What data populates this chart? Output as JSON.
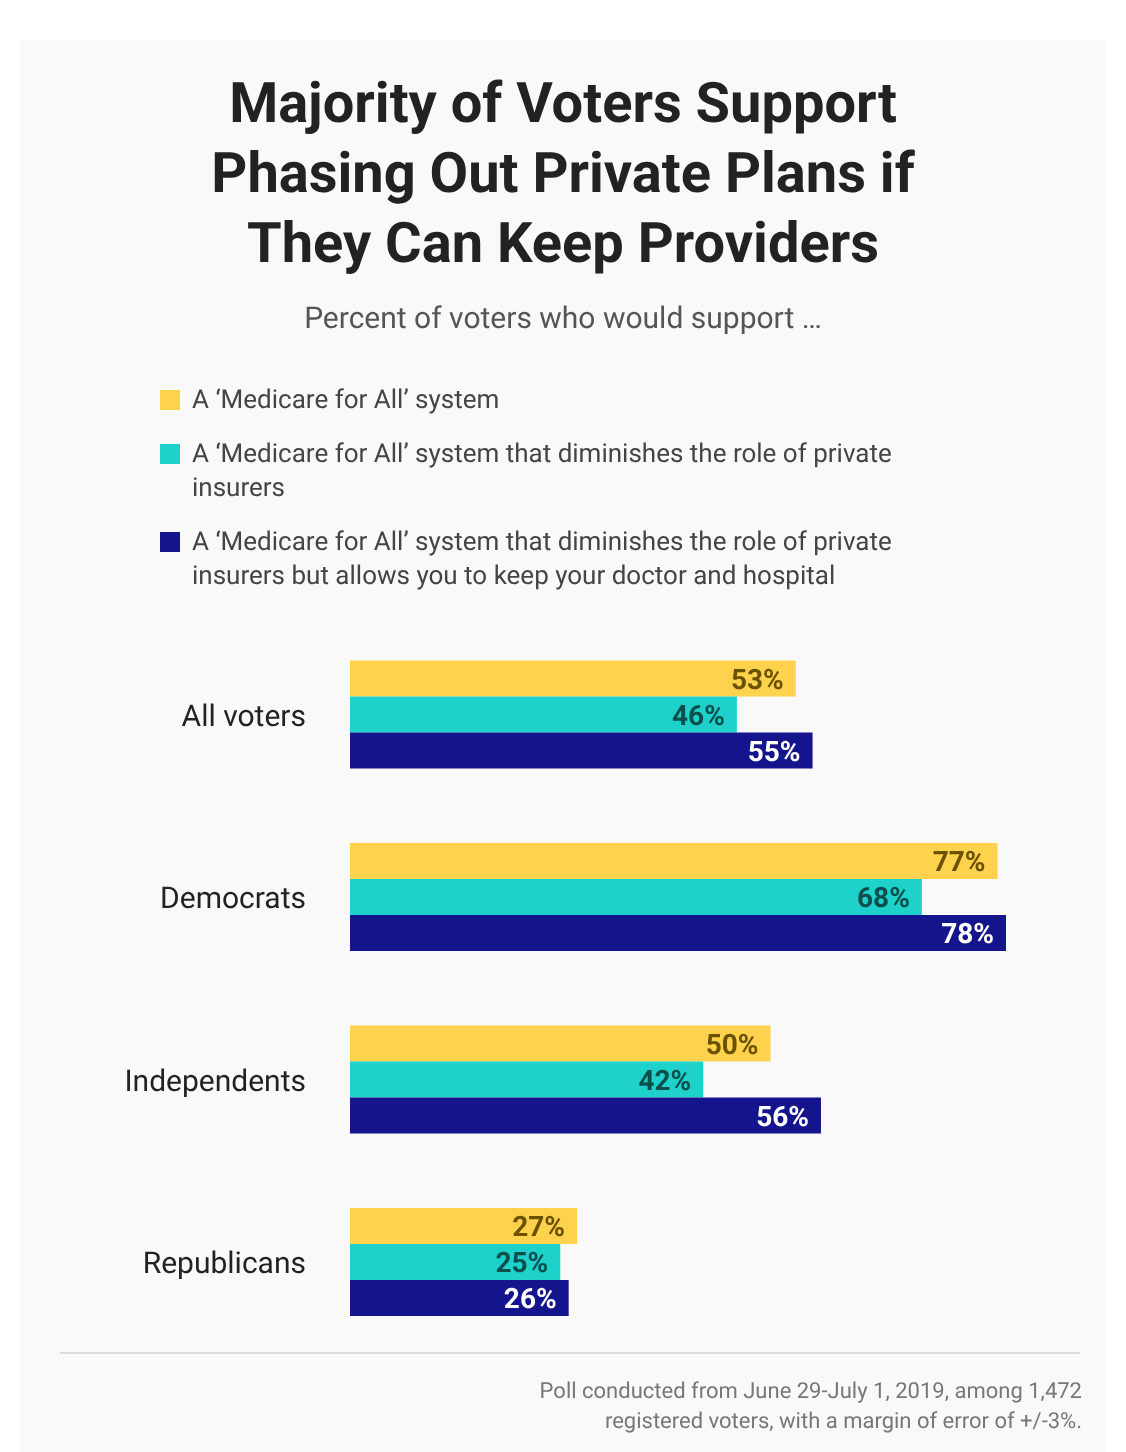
{
  "chart_data": {
    "type": "bar",
    "orientation": "horizontal",
    "title": "Majority of Voters Support Phasing Out Private Plans if They Can Keep Providers",
    "subtitle": "Percent of voters who would support …",
    "categories": [
      "All voters",
      "Democrats",
      "Independents",
      "Republicans"
    ],
    "series": [
      {
        "name": "A ‘Medicare for All’ system",
        "color": "#ffd24d",
        "values": [
          53,
          77,
          50,
          27
        ],
        "value_labels": [
          "53%",
          "77%",
          "50%",
          "27%"
        ]
      },
      {
        "name": "A ‘Medicare for All’ system that diminishes the role of private insurers",
        "color": "#1fd1cb",
        "values": [
          46,
          68,
          42,
          25
        ],
        "value_labels": [
          "46%",
          "68%",
          "42%",
          "25%"
        ]
      },
      {
        "name": "A ‘Medicare for All’ system that diminishes the role of private insurers but allows you to keep your doctor and hospital",
        "color": "#14148c",
        "values": [
          55,
          78,
          56,
          26
        ],
        "value_labels": [
          "55%",
          "78%",
          "56%",
          "26%"
        ]
      }
    ],
    "legend": "top left",
    "annotations": [
      "Poll conducted from June 29-July 1, 2019, among 1,472 registered voters, with a margin of error of +/-3%."
    ]
  }
}
